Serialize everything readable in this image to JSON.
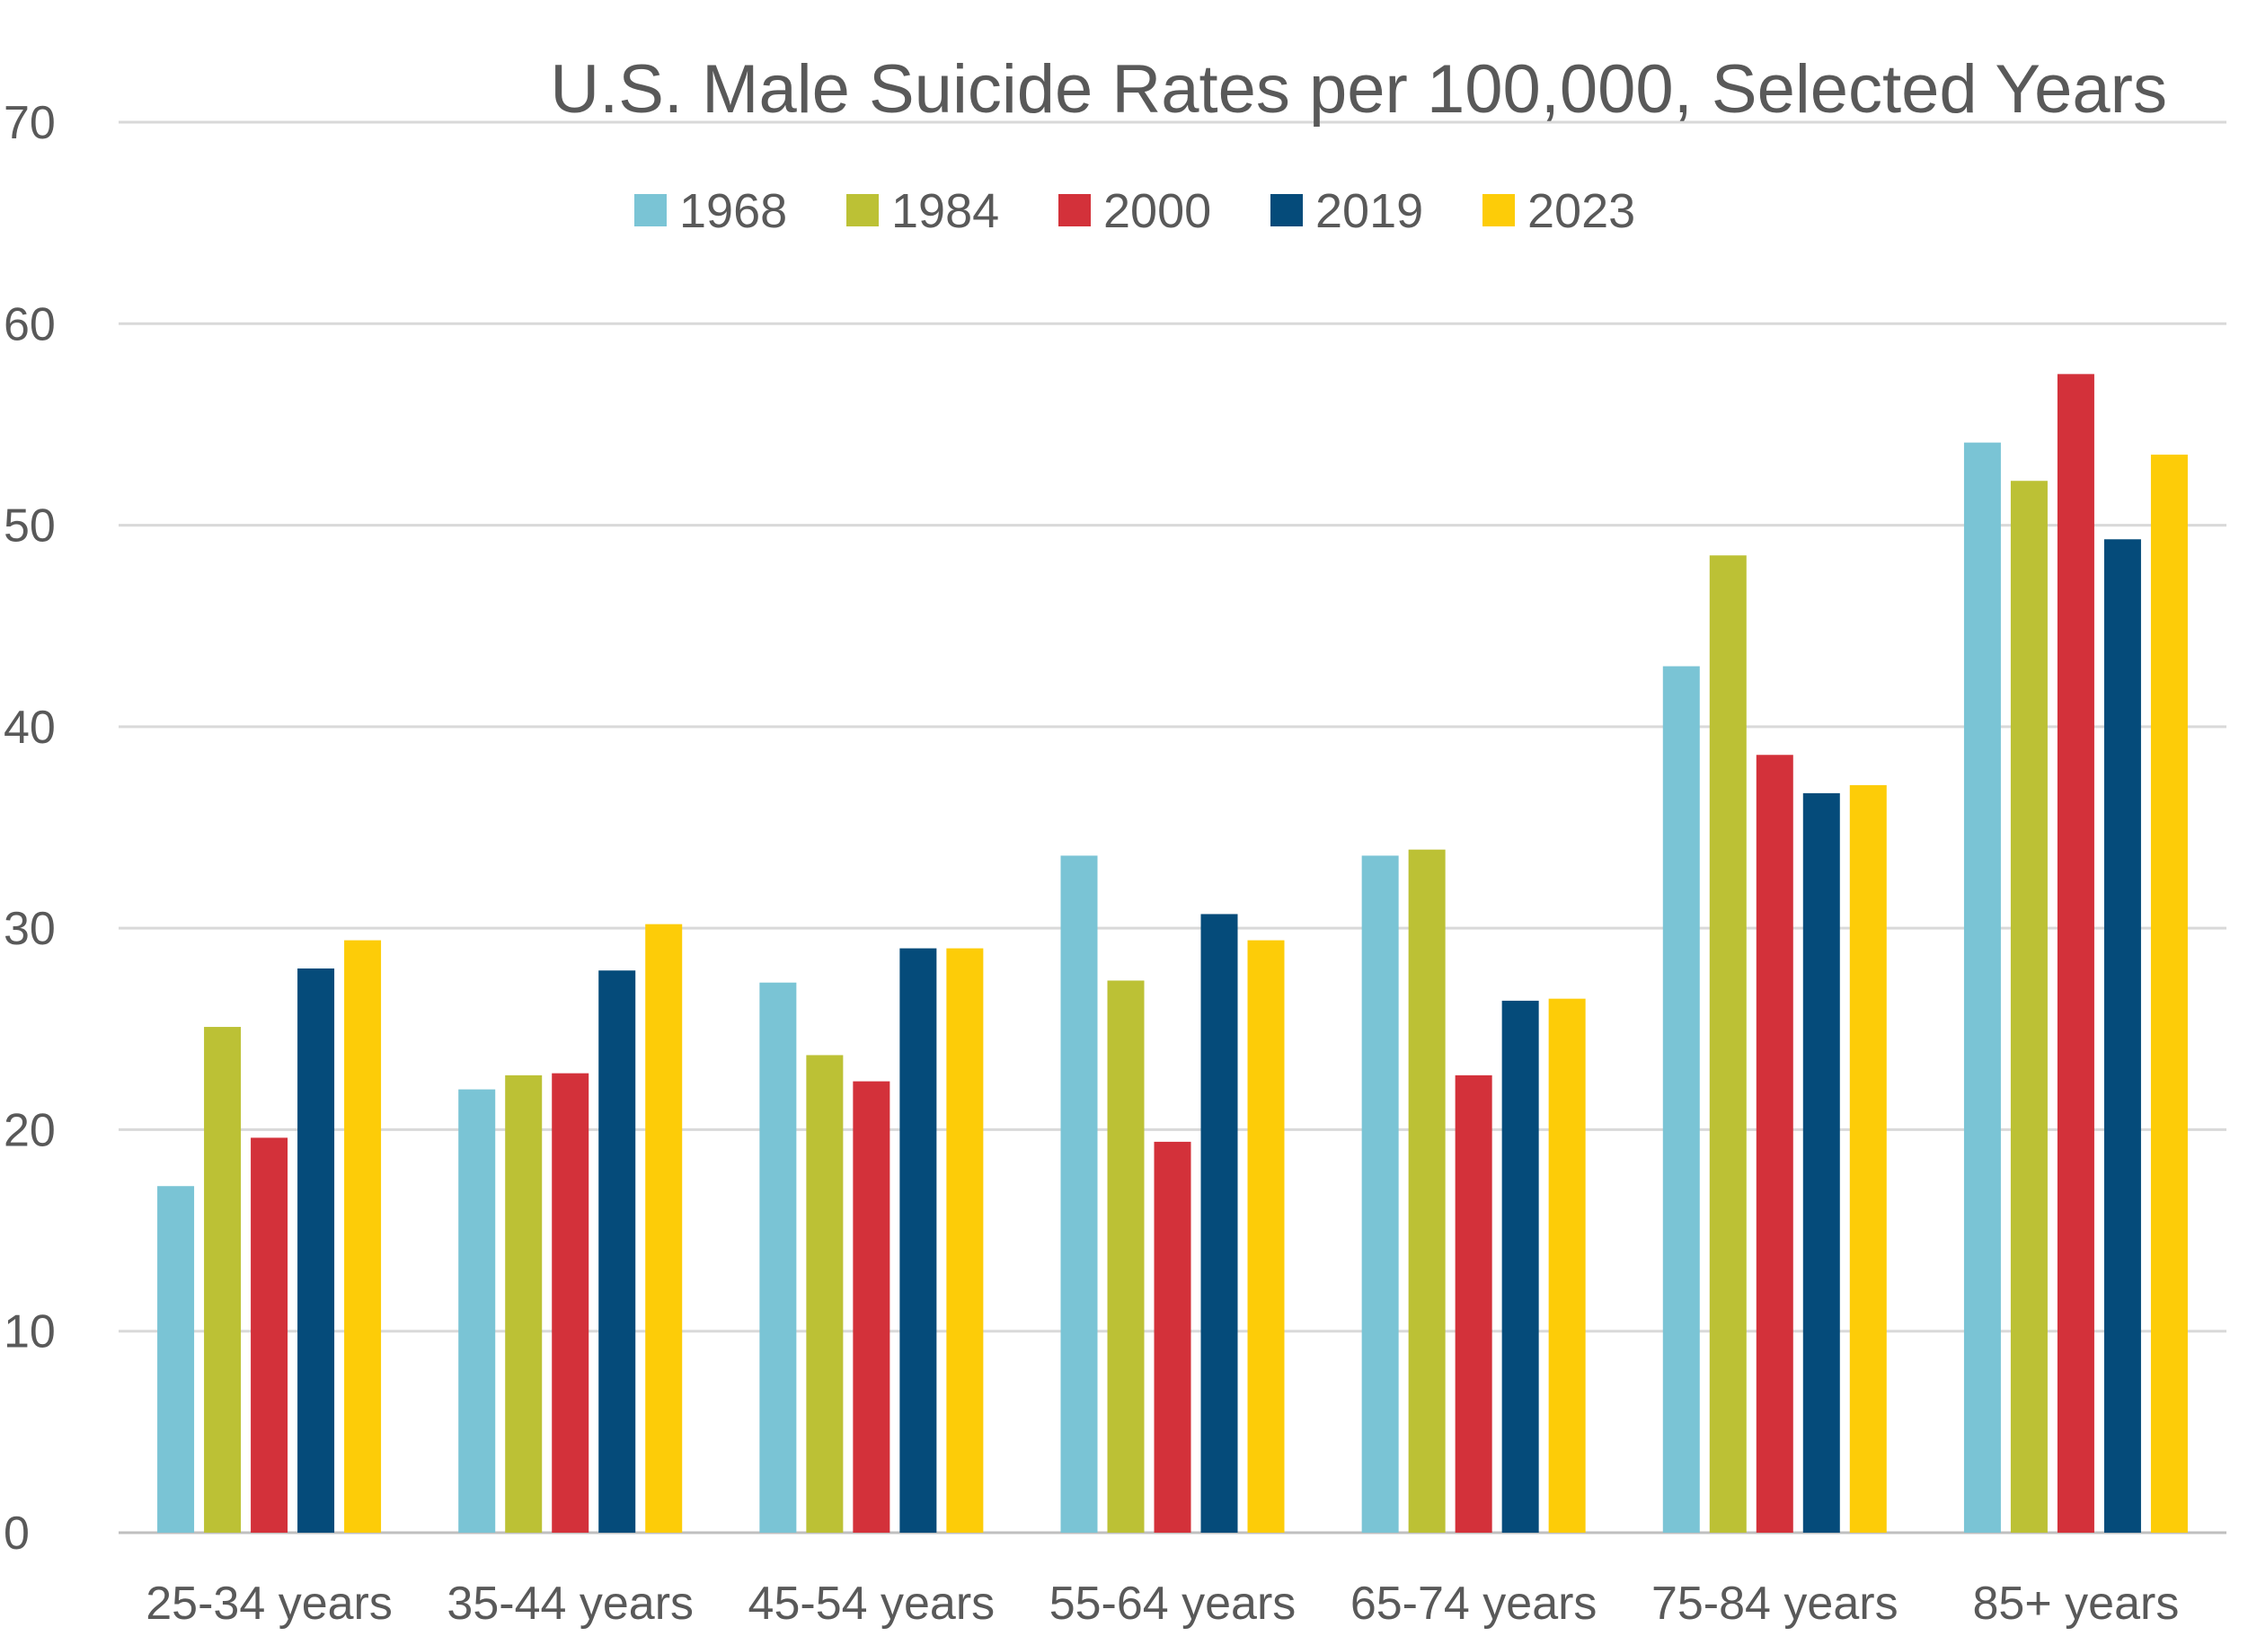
{
  "chart_data": {
    "type": "bar",
    "title": "U.S. Male Suicide Rates per 100,000, Selected Years",
    "xlabel": "",
    "ylabel": "",
    "ylim": [
      0,
      70
    ],
    "yticks": [
      0,
      10,
      20,
      30,
      40,
      50,
      60,
      70
    ],
    "grid": true,
    "legend_position": "top",
    "categories": [
      "25-34 years",
      "35-44 years",
      "45-54 years",
      "55-64 years",
      "65-74 years",
      "75-84 years",
      "85+ years"
    ],
    "series": [
      {
        "name": "1968",
        "color": "#7AC4D5",
        "values": [
          17.2,
          22.0,
          27.3,
          33.6,
          33.6,
          43.0,
          54.1
        ]
      },
      {
        "name": "1984",
        "color": "#BCC135",
        "values": [
          25.1,
          22.7,
          23.7,
          27.4,
          33.9,
          48.5,
          52.2
        ]
      },
      {
        "name": "2000",
        "color": "#D3313A",
        "values": [
          19.6,
          22.8,
          22.4,
          19.4,
          22.7,
          38.6,
          57.5
        ]
      },
      {
        "name": "2019",
        "color": "#054B7A",
        "values": [
          28.0,
          27.9,
          29.0,
          30.7,
          26.4,
          36.7,
          49.3
        ]
      },
      {
        "name": "2023",
        "color": "#FDCC08",
        "values": [
          29.4,
          30.2,
          29.0,
          29.4,
          26.5,
          37.1,
          53.5
        ]
      }
    ]
  }
}
